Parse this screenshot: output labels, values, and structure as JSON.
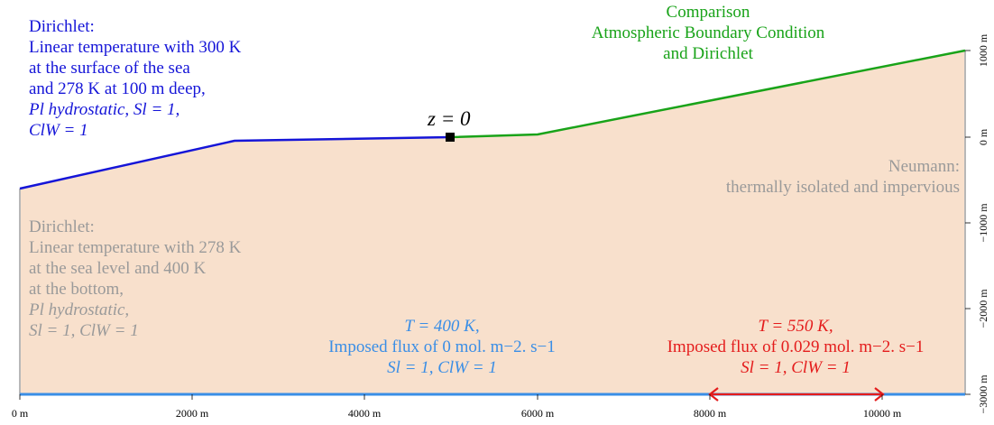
{
  "labels": {
    "z0": "z = 0",
    "dirichlet_sea": {
      "l1": "Dirichlet:",
      "l2": "Linear temperature with 300 K",
      "l3": "at the surface of the sea",
      "l4": "and 278 K at 100 m deep,",
      "l5": "Pl hydrostatic, Sl = 1,",
      "l6": "ClW = 1"
    },
    "comparison": {
      "l1": "Comparison",
      "l2": "Atmospheric Boundary Condition",
      "l3": "and Dirichlet"
    },
    "neumann": {
      "l1": "Neumann:",
      "l2": "thermally isolated and impervious"
    },
    "dirichlet_side": {
      "l1": "Dirichlet:",
      "l2": "Linear temperature with 278 K",
      "l3": "at the sea level and 400 K",
      "l4": "at the bottom,",
      "l5": "Pl hydrostatic,",
      "l6": "Sl = 1, ClW = 1"
    },
    "bottom_blue": {
      "l1": "T = 400 K,",
      "l2": "Imposed flux of 0 mol. m−2. s−1",
      "l3": "Sl = 1, ClW = 1"
    },
    "bottom_red": {
      "l1": "T = 550 K,",
      "l2": "Imposed flux of 0.029 mol. m−2. s−1",
      "l3": "Sl = 1, ClW = 1"
    }
  },
  "axes": {
    "x_ticks": [
      "0 m",
      "2000 m",
      "4000 m",
      "6000 m",
      "8000 m",
      "10000 m"
    ],
    "y_ticks": [
      "1000 m",
      "0 m",
      "−1000 m",
      "−2000 m",
      "−3000 m"
    ]
  },
  "colors": {
    "domain_fill": "#f8e0cc",
    "sea_boundary": "#1515d8",
    "atmo_boundary": "#19a319",
    "bottom_boundary": "#3a8ee6",
    "flux_region": "#e41c1c",
    "side_boundary": "#b8b8b8"
  }
}
